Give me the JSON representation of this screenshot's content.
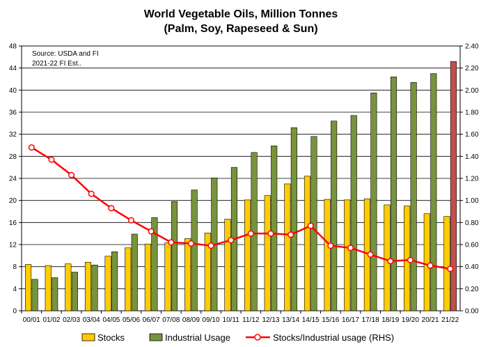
{
  "chart_data": {
    "type": "bar",
    "title": "World Vegetable Oils, Million Tonnes",
    "subtitle": "(Palm, Soy, Rapeseed & Sun)",
    "notes": [
      "Source: USDA and FI",
      "2021-22 FI Est.."
    ],
    "categories": [
      "00/01",
      "01/02",
      "02/03",
      "03/04",
      "04/05",
      "05/06",
      "06/07",
      "07/08",
      "08/09",
      "09/10",
      "10/11",
      "11/12",
      "12/13",
      "13/14",
      "14/15",
      "15/16",
      "16/17",
      "17/18",
      "18/19",
      "19/20",
      "20/21",
      "21/22"
    ],
    "left_axis": {
      "ylim": [
        0,
        48
      ],
      "ticks": [
        "0",
        "4",
        "8",
        "12",
        "16",
        "20",
        "24",
        "28",
        "32",
        "36",
        "40",
        "44",
        "48"
      ]
    },
    "right_axis": {
      "ylim": [
        0,
        2.4
      ],
      "ticks": [
        "0.00",
        "0.20",
        "0.40",
        "0.60",
        "0.80",
        "1.00",
        "1.20",
        "1.40",
        "1.60",
        "1.80",
        "2.00",
        "2.20",
        "2.40"
      ]
    },
    "series": [
      {
        "name": "Stocks",
        "type": "bar",
        "axis": "left",
        "color": "#ffcc00",
        "values": [
          8.4,
          8.2,
          8.5,
          8.8,
          9.9,
          11.4,
          12.1,
          12.3,
          13.1,
          14.1,
          16.6,
          20.1,
          20.9,
          23.0,
          24.4,
          20.2,
          20.1,
          20.3,
          19.2,
          19.0,
          17.6,
          17.1
        ]
      },
      {
        "name": "Industrial Usage",
        "type": "bar",
        "axis": "left",
        "color": "#77933c",
        "highlight_last_color": "#c0504d",
        "values": [
          5.7,
          6.0,
          7.0,
          8.3,
          10.7,
          13.9,
          16.9,
          19.8,
          21.9,
          24.1,
          26.0,
          28.7,
          29.9,
          33.2,
          31.6,
          34.4,
          35.4,
          39.5,
          42.4,
          41.4,
          43.0,
          45.2
        ]
      },
      {
        "name": "Stocks/Industrial usage (RHS)",
        "type": "line",
        "axis": "right",
        "color": "#ff0000",
        "values": [
          1.48,
          1.37,
          1.23,
          1.06,
          0.93,
          0.82,
          0.72,
          0.62,
          0.61,
          0.59,
          0.64,
          0.7,
          0.7,
          0.69,
          0.77,
          0.59,
          0.57,
          0.51,
          0.45,
          0.46,
          0.41,
          0.38
        ]
      }
    ],
    "legend": "bottom",
    "grid": true
  }
}
